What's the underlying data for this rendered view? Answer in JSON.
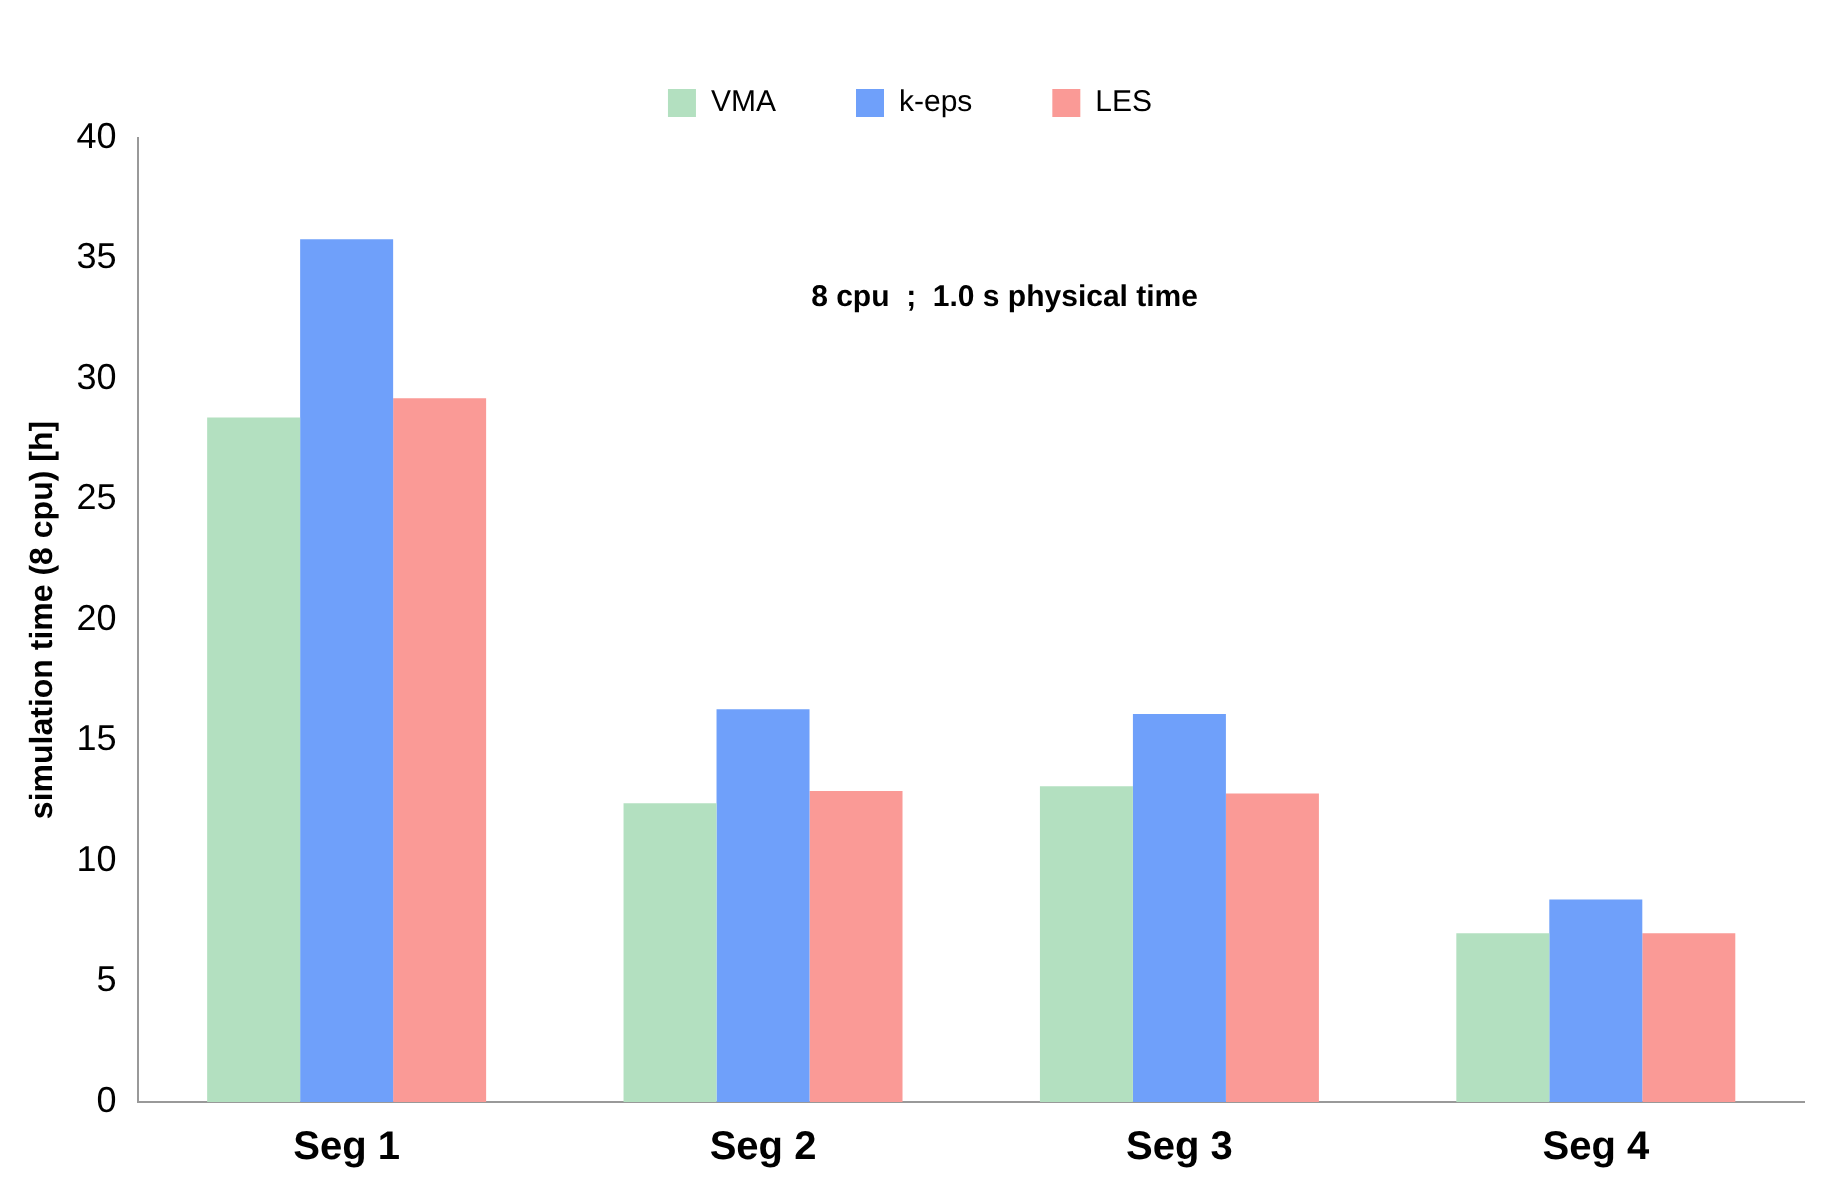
{
  "chart_data": {
    "type": "bar",
    "ylabel": "simulation time (8 cpu) [h]",
    "categories": [
      "Seg 1",
      "Seg 2",
      "Seg 3",
      "Seg 4"
    ],
    "series": [
      {
        "name": "VMA",
        "color": "#b3e0c0",
        "values": [
          28.4,
          12.4,
          13.1,
          7.0
        ]
      },
      {
        "name": "k-eps",
        "color": "#6fa0fa",
        "values": [
          35.8,
          16.3,
          16.1,
          8.4
        ]
      },
      {
        "name": "LES",
        "color": "#fa9a96",
        "values": [
          29.2,
          12.9,
          12.8,
          7.0
        ]
      }
    ],
    "ylim": [
      0,
      40
    ],
    "yticks": [
      0,
      5,
      10,
      15,
      20,
      25,
      30,
      35,
      40
    ],
    "grid": false,
    "legend": "top",
    "annotations": [
      "8 cpu  ;  1.0 s physical time"
    ]
  }
}
